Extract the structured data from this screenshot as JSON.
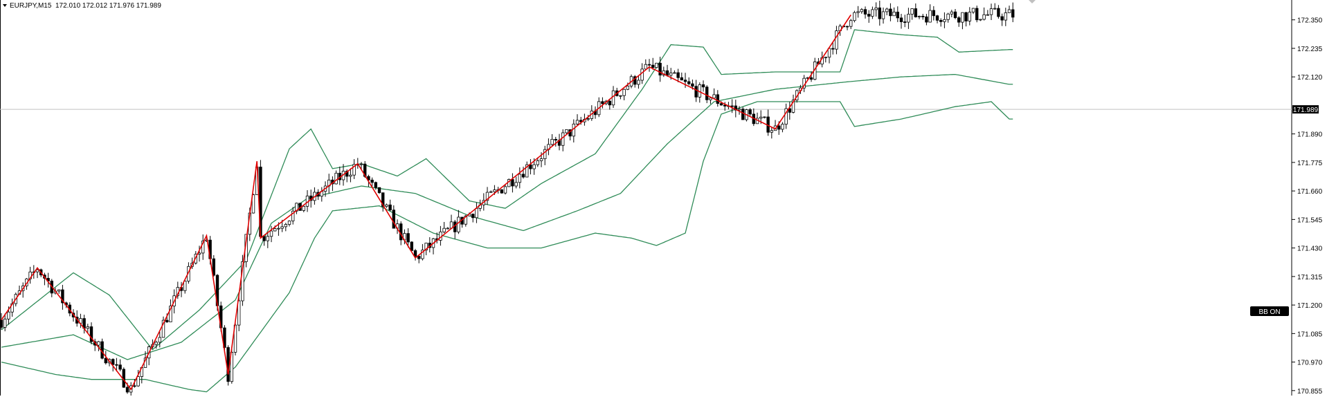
{
  "header": {
    "symbol_timeframe": "EURJPY,M15",
    "ohlc": "172.010 172.012 171.976 171.989"
  },
  "price_axis": {
    "ticks": [
      "172.350",
      "172.235",
      "172.120",
      "171.890",
      "171.775",
      "171.660",
      "171.545",
      "171.430",
      "171.315",
      "171.200",
      "171.085",
      "170.970",
      "170.855"
    ],
    "current_price_label": "171.989"
  },
  "badge": {
    "label": "BB ON"
  },
  "colors": {
    "candle": "#000000",
    "bollinger": "#2e8b57",
    "zigzag": "#e00000",
    "price_line": "#c0c0c0",
    "badge_bg": "#000000",
    "badge_fg": "#ffffff"
  },
  "chart_data": {
    "type": "candlestick",
    "symbol": "EURJPY",
    "timeframe": "M15",
    "ylim": [
      170.835,
      172.43
    ],
    "current_price": 171.989,
    "indicators": [
      "Bollinger Bands",
      "ZigZag"
    ],
    "zigzag": [
      {
        "bar": 0,
        "price": 171.14
      },
      {
        "bar": 10,
        "price": 171.35
      },
      {
        "bar": 36,
        "price": 170.86
      },
      {
        "bar": 57,
        "price": 171.48
      },
      {
        "bar": 63,
        "price": 170.92
      },
      {
        "bar": 71,
        "price": 171.78
      },
      {
        "bar": 72,
        "price": 171.47
      },
      {
        "bar": 99,
        "price": 171.77
      },
      {
        "bar": 115,
        "price": 171.39
      },
      {
        "bar": 180,
        "price": 172.16
      },
      {
        "bar": 215,
        "price": 171.91
      },
      {
        "bar": 236,
        "price": 172.37
      }
    ],
    "bollinger_upper": [
      {
        "bar": 0,
        "price": 171.1
      },
      {
        "bar": 20,
        "price": 171.33
      },
      {
        "bar": 30,
        "price": 171.24
      },
      {
        "bar": 42,
        "price": 171.02
      },
      {
        "bar": 55,
        "price": 171.18
      },
      {
        "bar": 68,
        "price": 171.38
      },
      {
        "bar": 80,
        "price": 171.83
      },
      {
        "bar": 86,
        "price": 171.91
      },
      {
        "bar": 92,
        "price": 171.75
      },
      {
        "bar": 100,
        "price": 171.77
      },
      {
        "bar": 110,
        "price": 171.72
      },
      {
        "bar": 118,
        "price": 171.79
      },
      {
        "bar": 130,
        "price": 171.62
      },
      {
        "bar": 140,
        "price": 171.59
      },
      {
        "bar": 150,
        "price": 171.69
      },
      {
        "bar": 165,
        "price": 171.81
      },
      {
        "bar": 178,
        "price": 172.07
      },
      {
        "bar": 186,
        "price": 172.25
      },
      {
        "bar": 195,
        "price": 172.24
      },
      {
        "bar": 200,
        "price": 172.13
      },
      {
        "bar": 215,
        "price": 172.14
      },
      {
        "bar": 233,
        "price": 172.14
      },
      {
        "bar": 237,
        "price": 172.31
      },
      {
        "bar": 250,
        "price": 172.29
      },
      {
        "bar": 260,
        "price": 172.28
      },
      {
        "bar": 266,
        "price": 172.22
      },
      {
        "bar": 280,
        "price": 172.23
      }
    ],
    "bollinger_middle": [
      {
        "bar": 0,
        "price": 171.03
      },
      {
        "bar": 20,
        "price": 171.08
      },
      {
        "bar": 35,
        "price": 170.98
      },
      {
        "bar": 50,
        "price": 171.05
      },
      {
        "bar": 65,
        "price": 171.22
      },
      {
        "bar": 75,
        "price": 171.53
      },
      {
        "bar": 85,
        "price": 171.63
      },
      {
        "bar": 100,
        "price": 171.68
      },
      {
        "bar": 115,
        "price": 171.65
      },
      {
        "bar": 130,
        "price": 171.56
      },
      {
        "bar": 145,
        "price": 171.5
      },
      {
        "bar": 160,
        "price": 171.58
      },
      {
        "bar": 172,
        "price": 171.65
      },
      {
        "bar": 185,
        "price": 171.85
      },
      {
        "bar": 198,
        "price": 172.02
      },
      {
        "bar": 215,
        "price": 172.07
      },
      {
        "bar": 235,
        "price": 172.1
      },
      {
        "bar": 250,
        "price": 172.12
      },
      {
        "bar": 265,
        "price": 172.13
      },
      {
        "bar": 280,
        "price": 172.09
      }
    ],
    "bollinger_lower": [
      {
        "bar": 0,
        "price": 170.97
      },
      {
        "bar": 15,
        "price": 170.92
      },
      {
        "bar": 25,
        "price": 170.9
      },
      {
        "bar": 40,
        "price": 170.9
      },
      {
        "bar": 52,
        "price": 170.86
      },
      {
        "bar": 57,
        "price": 170.85
      },
      {
        "bar": 65,
        "price": 170.95
      },
      {
        "bar": 80,
        "price": 171.25
      },
      {
        "bar": 87,
        "price": 171.47
      },
      {
        "bar": 92,
        "price": 171.58
      },
      {
        "bar": 105,
        "price": 171.6
      },
      {
        "bar": 120,
        "price": 171.49
      },
      {
        "bar": 135,
        "price": 171.43
      },
      {
        "bar": 150,
        "price": 171.43
      },
      {
        "bar": 165,
        "price": 171.49
      },
      {
        "bar": 175,
        "price": 171.47
      },
      {
        "bar": 182,
        "price": 171.44
      },
      {
        "bar": 190,
        "price": 171.49
      },
      {
        "bar": 195,
        "price": 171.78
      },
      {
        "bar": 200,
        "price": 171.97
      },
      {
        "bar": 210,
        "price": 172.02
      },
      {
        "bar": 233,
        "price": 172.02
      },
      {
        "bar": 237,
        "price": 171.92
      },
      {
        "bar": 250,
        "price": 171.95
      },
      {
        "bar": 265,
        "price": 172.0
      },
      {
        "bar": 275,
        "price": 172.02
      },
      {
        "bar": 280,
        "price": 171.95
      }
    ]
  }
}
